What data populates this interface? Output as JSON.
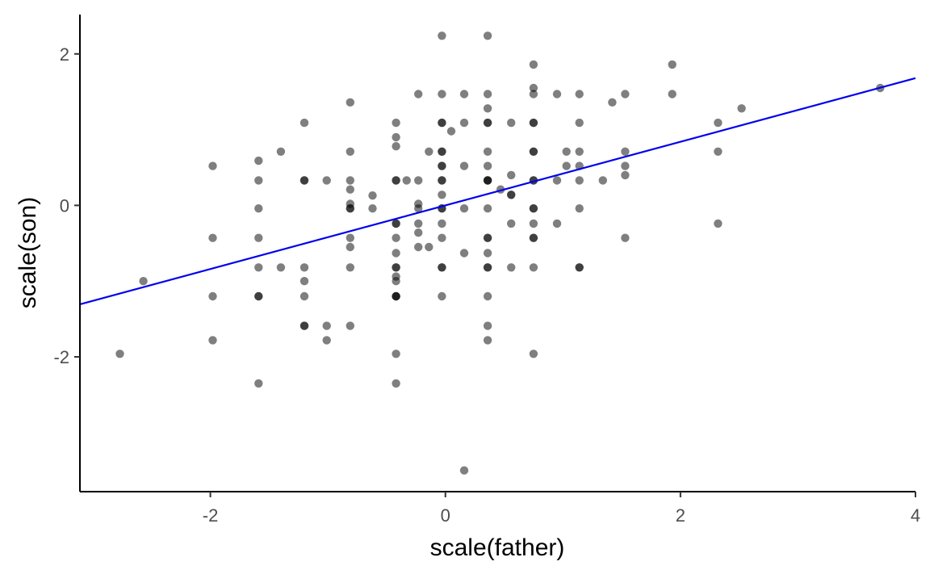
{
  "chart_data": {
    "type": "scatter",
    "title": "",
    "xlabel": "scale(father)",
    "ylabel": "scale(son)",
    "xlim": [
      -3.11,
      4.0
    ],
    "ylim": [
      -3.78,
      2.52
    ],
    "xticks": [
      -2,
      0,
      2,
      4
    ],
    "xtick_labels": [
      "-2",
      "0",
      "2",
      "4"
    ],
    "yticks": [
      -2,
      0,
      2
    ],
    "ytick_labels": [
      "-2",
      "0",
      "2"
    ],
    "grid": false,
    "legend": "none",
    "point_color": "#000000",
    "point_opacity": 0.5,
    "line_color": "#0000ee",
    "axis_color": "#000000",
    "points": [
      [
        -2.77,
        -1.96
      ],
      [
        -2.57,
        -1.0
      ],
      [
        -1.98,
        0.52
      ],
      [
        -1.98,
        -0.43
      ],
      [
        -1.98,
        -1.2
      ],
      [
        -1.98,
        -1.78
      ],
      [
        -1.59,
        0.59
      ],
      [
        -1.59,
        0.33
      ],
      [
        -1.59,
        -0.04
      ],
      [
        -1.59,
        -0.43
      ],
      [
        -1.59,
        -0.82
      ],
      [
        -1.59,
        -1.2
      ],
      [
        -1.59,
        -1.2
      ],
      [
        -1.59,
        -2.35
      ],
      [
        -1.4,
        0.71
      ],
      [
        -1.4,
        -0.82
      ],
      [
        -1.2,
        1.09
      ],
      [
        -1.2,
        0.33
      ],
      [
        -1.2,
        0.33
      ],
      [
        -1.2,
        -0.82
      ],
      [
        -1.2,
        -1.0
      ],
      [
        -1.2,
        -1.2
      ],
      [
        -1.2,
        -1.59
      ],
      [
        -1.2,
        -1.59
      ],
      [
        -1.01,
        0.33
      ],
      [
        -1.01,
        -1.59
      ],
      [
        -1.01,
        -1.78
      ],
      [
        -0.81,
        1.36
      ],
      [
        -0.81,
        0.71
      ],
      [
        -0.81,
        0.33
      ],
      [
        -0.81,
        0.21
      ],
      [
        -0.81,
        0.02
      ],
      [
        -0.81,
        -0.04
      ],
      [
        -0.81,
        -0.04
      ],
      [
        -0.81,
        -0.43
      ],
      [
        -0.81,
        -0.55
      ],
      [
        -0.81,
        -0.82
      ],
      [
        -0.81,
        -1.59
      ],
      [
        -0.62,
        0.13
      ],
      [
        -0.62,
        -0.04
      ],
      [
        -0.42,
        1.09
      ],
      [
        -0.42,
        0.9
      ],
      [
        -0.42,
        0.78
      ],
      [
        -0.42,
        0.33
      ],
      [
        -0.42,
        0.33
      ],
      [
        -0.42,
        -0.24
      ],
      [
        -0.42,
        -0.24
      ],
      [
        -0.42,
        -0.43
      ],
      [
        -0.42,
        -0.63
      ],
      [
        -0.42,
        -0.82
      ],
      [
        -0.42,
        -0.82
      ],
      [
        -0.42,
        -0.94
      ],
      [
        -0.42,
        -1.0
      ],
      [
        -0.42,
        -1.2
      ],
      [
        -0.42,
        -1.2
      ],
      [
        -0.42,
        -1.2
      ],
      [
        -0.42,
        -1.96
      ],
      [
        -0.42,
        -2.35
      ],
      [
        -0.33,
        0.33
      ],
      [
        -0.23,
        1.47
      ],
      [
        -0.23,
        0.33
      ],
      [
        -0.23,
        0.02
      ],
      [
        -0.23,
        -0.04
      ],
      [
        -0.23,
        -0.24
      ],
      [
        -0.23,
        -0.36
      ],
      [
        -0.23,
        -0.55
      ],
      [
        -0.14,
        0.71
      ],
      [
        -0.14,
        -0.55
      ],
      [
        -0.03,
        2.24
      ],
      [
        -0.03,
        1.47
      ],
      [
        -0.03,
        1.09
      ],
      [
        -0.03,
        1.09
      ],
      [
        -0.03,
        0.71
      ],
      [
        -0.03,
        0.71
      ],
      [
        -0.03,
        0.52
      ],
      [
        -0.03,
        0.52
      ],
      [
        -0.03,
        0.33
      ],
      [
        -0.03,
        0.33
      ],
      [
        -0.03,
        0.14
      ],
      [
        -0.03,
        -0.04
      ],
      [
        -0.03,
        -0.04
      ],
      [
        -0.03,
        -0.24
      ],
      [
        -0.03,
        -0.43
      ],
      [
        -0.03,
        -0.82
      ],
      [
        -0.03,
        -0.82
      ],
      [
        -0.03,
        -1.2
      ],
      [
        0.05,
        0.98
      ],
      [
        0.16,
        1.47
      ],
      [
        0.16,
        1.09
      ],
      [
        0.16,
        0.52
      ],
      [
        0.16,
        -0.04
      ],
      [
        0.16,
        -0.63
      ],
      [
        0.16,
        -3.5
      ],
      [
        0.36,
        2.24
      ],
      [
        0.36,
        1.47
      ],
      [
        0.36,
        1.28
      ],
      [
        0.36,
        1.09
      ],
      [
        0.36,
        1.09
      ],
      [
        0.36,
        0.71
      ],
      [
        0.36,
        0.52
      ],
      [
        0.36,
        0.33
      ],
      [
        0.36,
        0.33
      ],
      [
        0.36,
        0.33
      ],
      [
        0.36,
        -0.04
      ],
      [
        0.36,
        -0.43
      ],
      [
        0.36,
        -0.43
      ],
      [
        0.36,
        -0.63
      ],
      [
        0.36,
        -0.82
      ],
      [
        0.36,
        -0.82
      ],
      [
        0.36,
        -1.2
      ],
      [
        0.36,
        -1.59
      ],
      [
        0.36,
        -1.78
      ],
      [
        0.47,
        0.21
      ],
      [
        0.56,
        1.09
      ],
      [
        0.56,
        0.4
      ],
      [
        0.56,
        0.14
      ],
      [
        0.56,
        0.14
      ],
      [
        0.56,
        -0.24
      ],
      [
        0.56,
        -0.82
      ],
      [
        0.75,
        1.86
      ],
      [
        0.75,
        1.55
      ],
      [
        0.75,
        1.47
      ],
      [
        0.75,
        1.09
      ],
      [
        0.75,
        1.09
      ],
      [
        0.75,
        0.71
      ],
      [
        0.75,
        0.71
      ],
      [
        0.75,
        0.33
      ],
      [
        0.75,
        0.33
      ],
      [
        0.75,
        -0.04
      ],
      [
        0.75,
        -0.04
      ],
      [
        0.75,
        -0.24
      ],
      [
        0.75,
        -0.43
      ],
      [
        0.75,
        -0.43
      ],
      [
        0.75,
        -0.82
      ],
      [
        0.75,
        -1.96
      ],
      [
        0.95,
        1.47
      ],
      [
        0.95,
        0.33
      ],
      [
        0.95,
        -0.24
      ],
      [
        1.03,
        0.71
      ],
      [
        1.03,
        0.52
      ],
      [
        1.14,
        1.47
      ],
      [
        1.14,
        1.09
      ],
      [
        1.14,
        0.71
      ],
      [
        1.14,
        0.52
      ],
      [
        1.14,
        0.33
      ],
      [
        1.14,
        -0.04
      ],
      [
        1.14,
        -0.82
      ],
      [
        1.14,
        -0.82
      ],
      [
        1.34,
        0.33
      ],
      [
        1.42,
        1.36
      ],
      [
        1.53,
        1.47
      ],
      [
        1.53,
        0.71
      ],
      [
        1.53,
        0.52
      ],
      [
        1.53,
        0.4
      ],
      [
        1.53,
        -0.43
      ],
      [
        1.93,
        1.86
      ],
      [
        1.93,
        1.47
      ],
      [
        2.32,
        1.09
      ],
      [
        2.32,
        0.71
      ],
      [
        2.32,
        -0.24
      ],
      [
        2.52,
        1.28
      ],
      [
        3.7,
        1.55
      ]
    ],
    "regression_line": {
      "slope": 0.42,
      "intercept": 0.0
    }
  }
}
